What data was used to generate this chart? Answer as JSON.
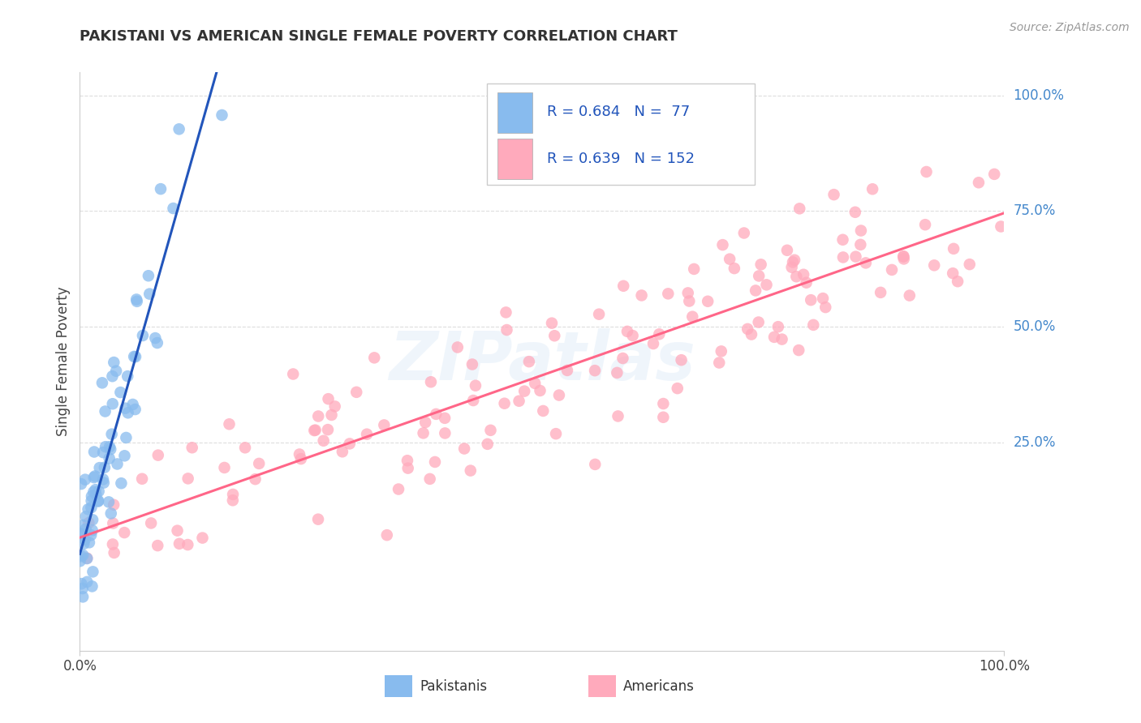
{
  "title": "PAKISTANI VS AMERICAN SINGLE FEMALE POVERTY CORRELATION CHART",
  "source": "Source: ZipAtlas.com",
  "ylabel": "Single Female Poverty",
  "R1": 0.684,
  "N1": 77,
  "R2": 0.639,
  "N2": 152,
  "blue_color": "#88BBEE",
  "pink_color": "#FFAABC",
  "blue_line_color": "#2255BB",
  "pink_line_color": "#FF6688",
  "watermark_color": "#AACCEE",
  "background_color": "#FFFFFF",
  "grid_color": "#DDDDDD",
  "title_color": "#333333",
  "source_color": "#999999",
  "right_axis_color": "#4488CC",
  "legend_text_color": "#2255BB"
}
